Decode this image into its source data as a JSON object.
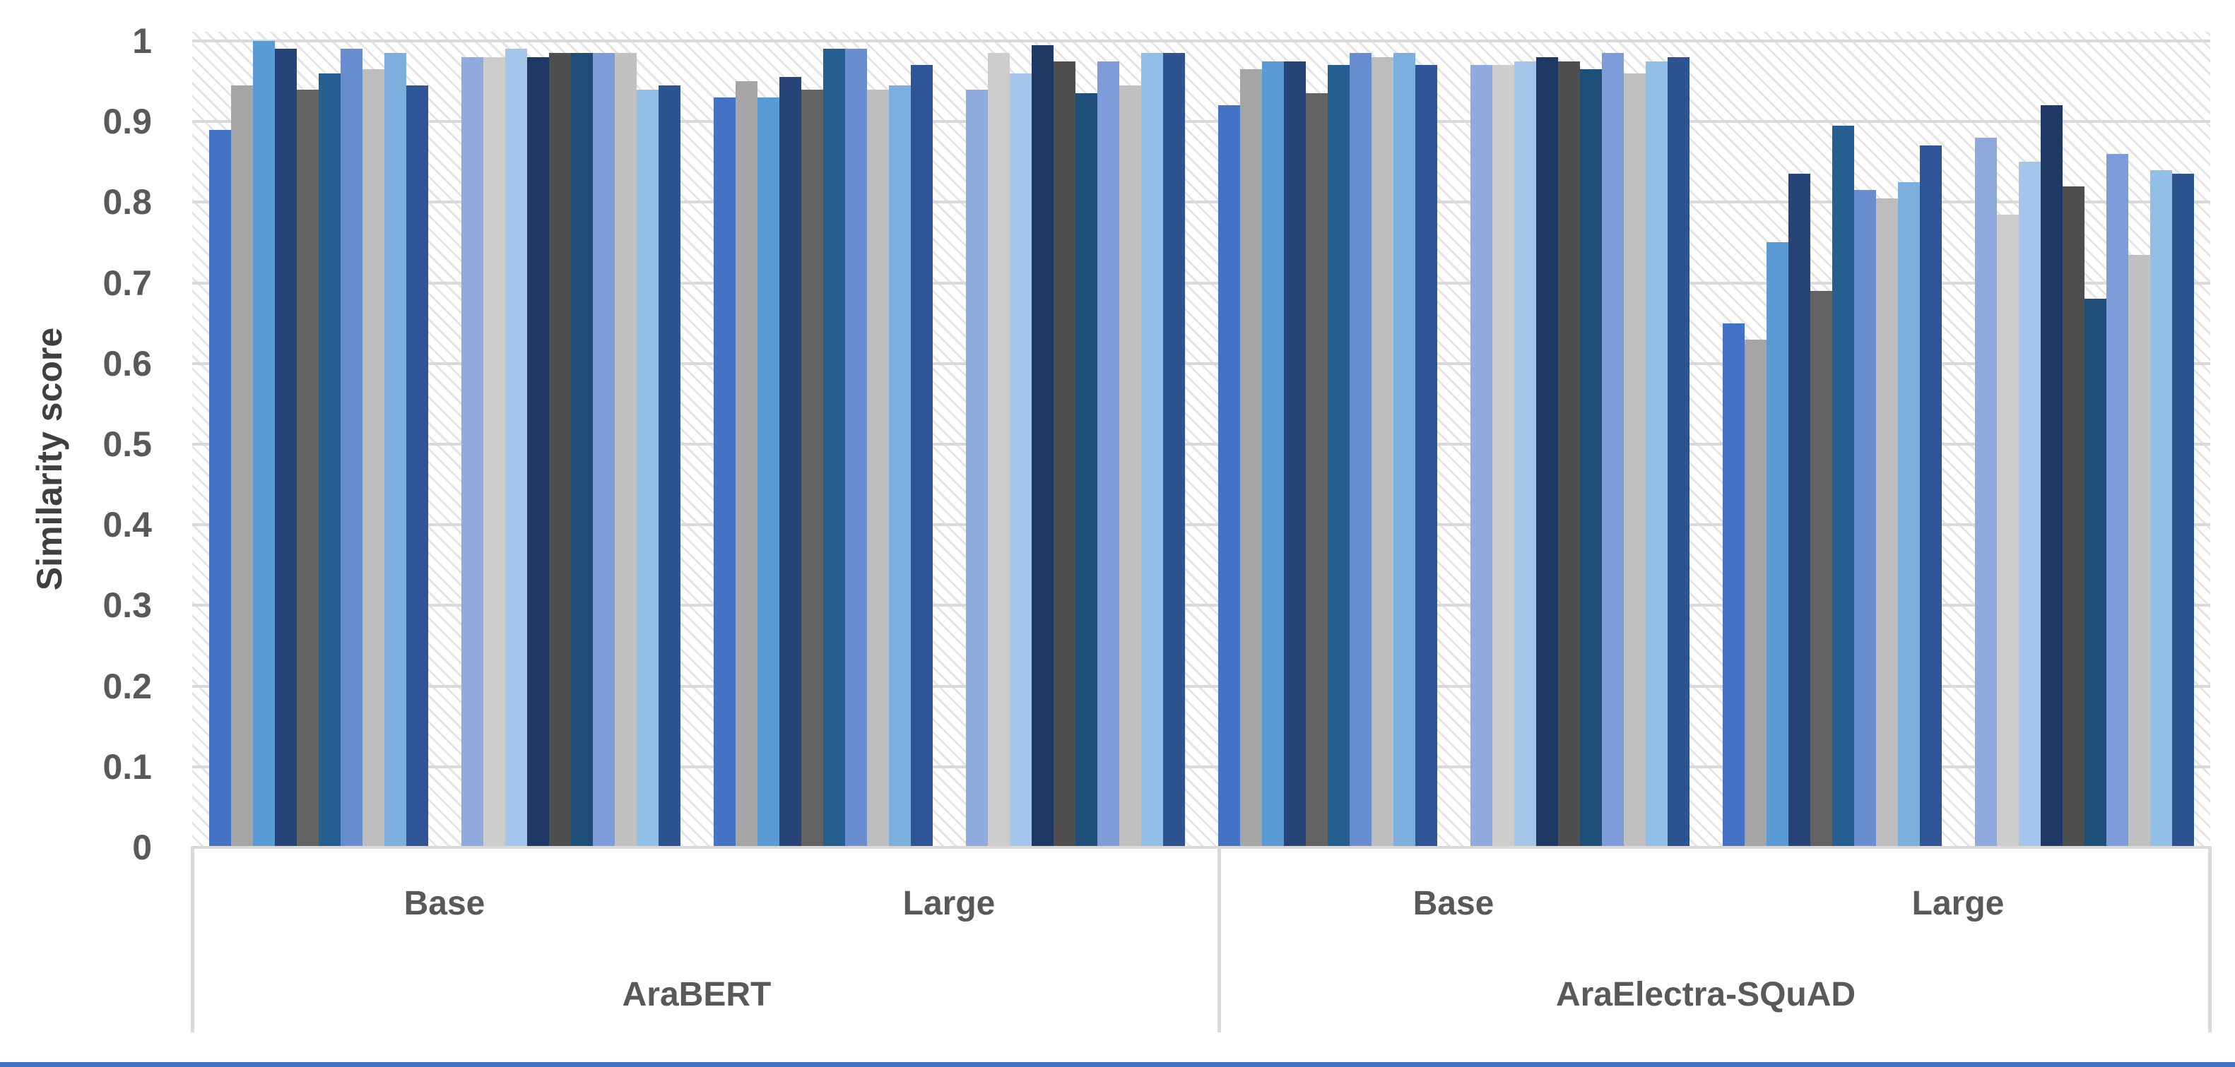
{
  "chart_data": {
    "type": "bar",
    "title": "",
    "xlabel": "",
    "ylabel": "Similarity score",
    "ylim": [
      0,
      1
    ],
    "grid": true,
    "legend": "none",
    "plot_background": "diagonal-hatch",
    "y_axis": {
      "label": "Similarity score",
      "ticks": [
        {
          "label": "1",
          "value": 1.0
        },
        {
          "label": "0.9",
          "value": 0.9
        },
        {
          "label": "0.8",
          "value": 0.8
        },
        {
          "label": "0.7",
          "value": 0.7
        },
        {
          "label": "0.6",
          "value": 0.6
        },
        {
          "label": "0.5",
          "value": 0.5
        },
        {
          "label": "0.4",
          "value": 0.4
        },
        {
          "label": "0.3",
          "value": 0.3
        },
        {
          "label": "0.2",
          "value": 0.2
        },
        {
          "label": "0.1",
          "value": 0.1
        },
        {
          "label": "0",
          "value": 0.0
        }
      ]
    },
    "category_tiers": [
      {
        "label": "AraBERT",
        "sizes": [
          "Base",
          "Large"
        ]
      },
      {
        "label": "AraElectra-SQuAD",
        "sizes": [
          "Base",
          "Large"
        ]
      }
    ],
    "palettes": {
      "a": [
        "#4472C4",
        "#A5A5A5",
        "#5B9BD5",
        "#264478",
        "#636363",
        "#255E91",
        "#698ED0",
        "#BDBDBD",
        "#7CAFDE",
        "#2F5597"
      ],
      "b": [
        "#8FAADC",
        "#CDCDCD",
        "#A3C6EA",
        "#1F3864",
        "#4F4F4F",
        "#1F4E79",
        "#7E9CD9",
        "#C1C1C1",
        "#92BFE6",
        "#2E5391"
      ]
    },
    "groups": [
      {
        "model": "AraBERT",
        "size": "Base",
        "palette": "a",
        "values": [
          0.89,
          0.945,
          1.0,
          0.99,
          0.94,
          0.96,
          0.99,
          0.965,
          0.985,
          0.945
        ]
      },
      {
        "model": "AraBERT",
        "size": "Base",
        "palette": "b",
        "values": [
          0.98,
          0.98,
          0.99,
          0.98,
          0.985,
          0.985,
          0.985,
          0.985,
          0.94,
          0.945
        ]
      },
      {
        "model": "AraBERT",
        "size": "Large",
        "palette": "a",
        "values": [
          0.93,
          0.95,
          0.93,
          0.955,
          0.94,
          0.99,
          0.99,
          0.94,
          0.945,
          0.97
        ]
      },
      {
        "model": "AraBERT",
        "size": "Large",
        "palette": "b",
        "values": [
          0.94,
          0.985,
          0.96,
          0.995,
          0.975,
          0.935,
          0.975,
          0.945,
          0.985,
          0.985
        ]
      },
      {
        "model": "AraElectra-SQuAD",
        "size": "Base",
        "palette": "a",
        "values": [
          0.92,
          0.965,
          0.975,
          0.975,
          0.935,
          0.97,
          0.985,
          0.98,
          0.985,
          0.97
        ]
      },
      {
        "model": "AraElectra-SQuAD",
        "size": "Base",
        "palette": "b",
        "values": [
          0.97,
          0.97,
          0.975,
          0.98,
          0.975,
          0.965,
          0.985,
          0.96,
          0.975,
          0.98
        ]
      },
      {
        "model": "AraElectra-SQuAD",
        "size": "Large",
        "palette": "a",
        "values": [
          0.65,
          0.63,
          0.75,
          0.835,
          0.69,
          0.895,
          0.815,
          0.805,
          0.825,
          0.87
        ]
      },
      {
        "model": "AraElectra-SQuAD",
        "size": "Large",
        "palette": "b",
        "values": [
          0.88,
          0.785,
          0.85,
          0.92,
          0.82,
          0.68,
          0.86,
          0.735,
          0.84,
          0.835
        ]
      }
    ]
  },
  "styles": {
    "grid_color": "#D9D9D9",
    "axis_line_color": "#D9D9D9",
    "tick_label_color": "#595959",
    "category_label_color": "#595959",
    "axis_title_color": "#3F3F3F",
    "hatch_color": "#E4E4E4",
    "bottom_rule_color": "#4472C4"
  }
}
